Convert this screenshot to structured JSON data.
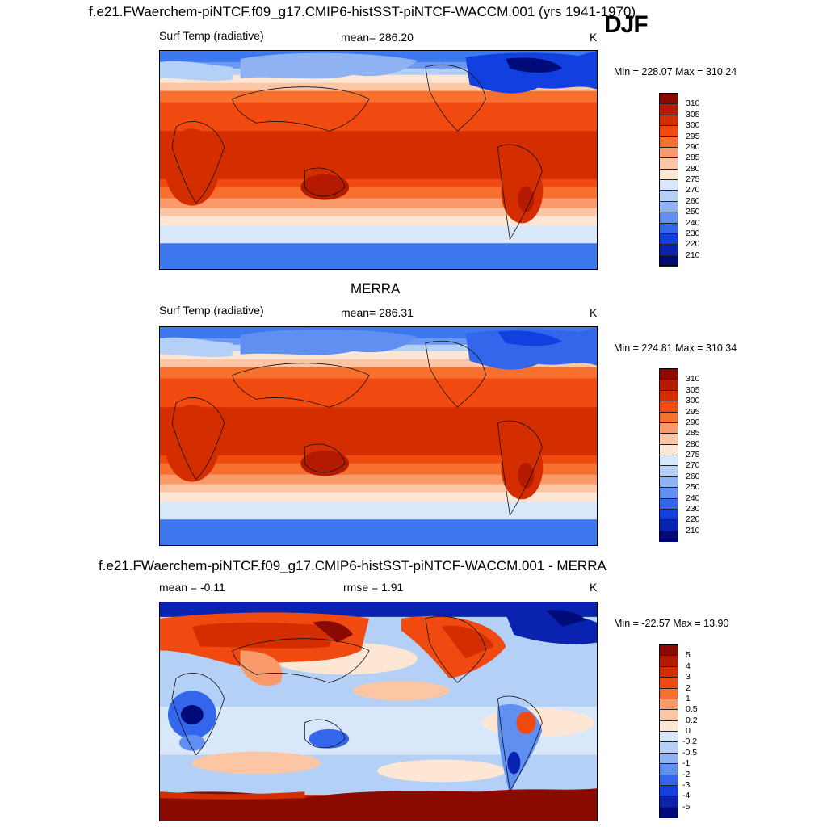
{
  "season": "DJF",
  "panels": [
    {
      "title": "f.e21.FWaerchem-piNTCF.f09_g17.CMIP6-histSST-piNTCF-WACCM.001 (yrs 1941-1970)",
      "left_text": "Surf Temp (radiative)",
      "center_text": "mean= 286.20",
      "units": "K",
      "minmax": "Min = 228.07 Max = 310.24",
      "kind": "abs"
    },
    {
      "title": "MERRA",
      "left_text": "Surf Temp (radiative)",
      "center_text": "mean= 286.31",
      "units": "K",
      "minmax": "Min = 224.81 Max = 310.34",
      "kind": "abs"
    },
    {
      "title": "f.e21.FWaerchem-piNTCF.f09_g17.CMIP6-histSST-piNTCF-WACCM.001 - MERRA",
      "left_text": "mean =  -0.11",
      "center_text": "rmse =   1.91",
      "units": "K",
      "minmax": "Min = -22.57 Max =  13.90",
      "kind": "diff"
    }
  ],
  "colorbars": {
    "abs": {
      "labels": [
        "310",
        "305",
        "300",
        "295",
        "290",
        "285",
        "280",
        "275",
        "270",
        "260",
        "250",
        "240",
        "230",
        "220",
        "210"
      ],
      "colors": [
        "#8b0a00",
        "#b31a00",
        "#d42e00",
        "#f04a10",
        "#f7702e",
        "#fa9a6a",
        "#fcc6a5",
        "#fde6d4",
        "#d8e8fa",
        "#b4d0f6",
        "#8fb3f2",
        "#5f8ff0",
        "#3466ec",
        "#1240e0",
        "#0a22b0",
        "#000b7a"
      ]
    },
    "diff": {
      "labels": [
        "5",
        "4",
        "3",
        "2",
        "1",
        "0.5",
        "0.2",
        "0",
        "-0.2",
        "-0.5",
        "-1",
        "-2",
        "-3",
        "-4",
        "-5"
      ],
      "colors": [
        "#8b0a00",
        "#b31a00",
        "#d42e00",
        "#f04a10",
        "#f7702e",
        "#fa9a6a",
        "#fcc6a5",
        "#fde6d4",
        "#d8e8fa",
        "#b4d0f6",
        "#8fb3f2",
        "#5f8ff0",
        "#3466ec",
        "#1240e0",
        "#0a22b0",
        "#000b7a"
      ]
    }
  }
}
